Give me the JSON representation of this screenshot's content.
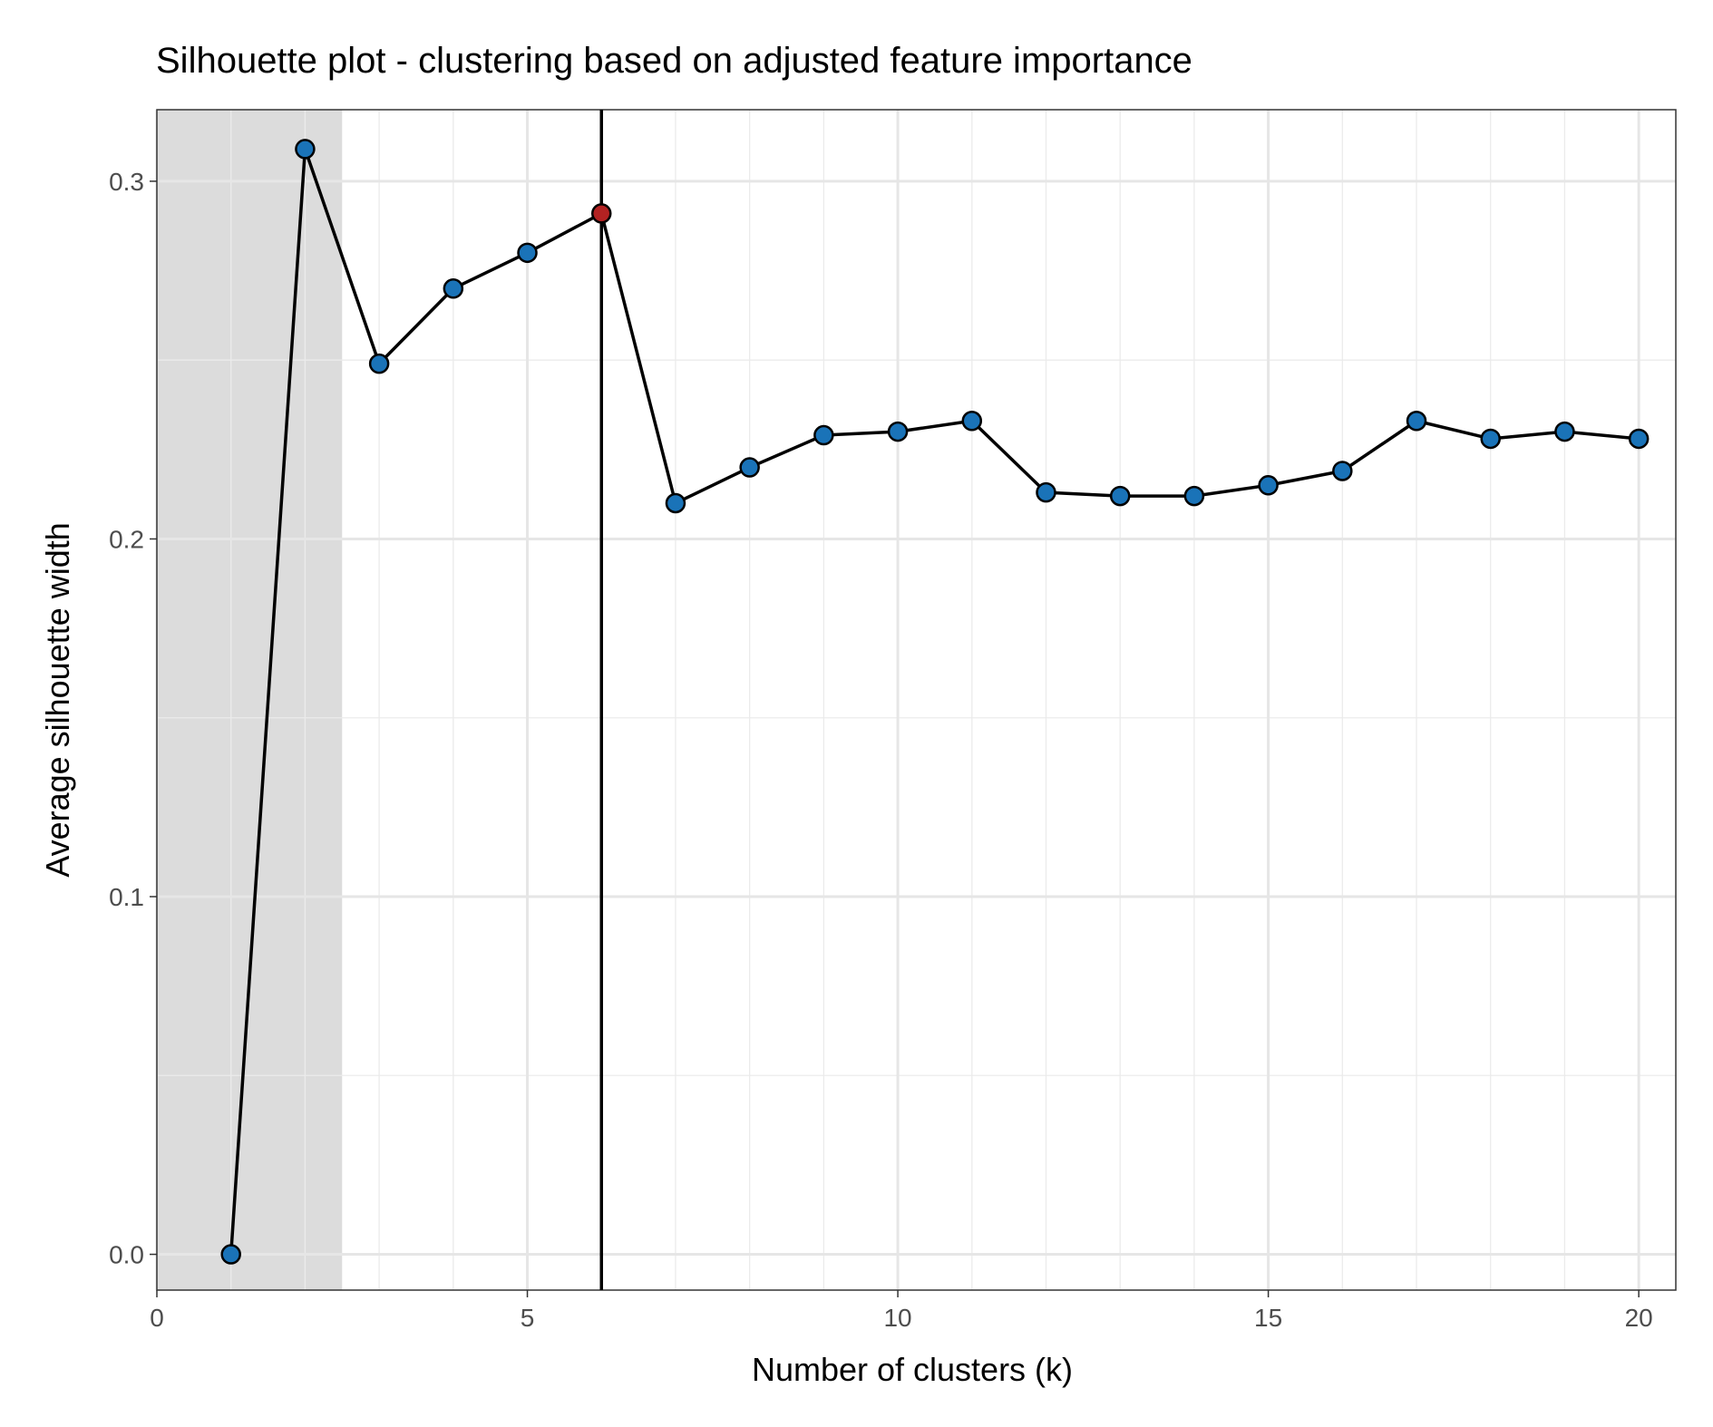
{
  "chart_data": {
    "type": "line",
    "title": "Silhouette plot - clustering based on adjusted feature importance",
    "xlabel": "Number of clusters (k)",
    "ylabel": "Average silhouette width",
    "xlim": [
      0,
      20.5
    ],
    "ylim": [
      -0.01,
      0.32
    ],
    "x_ticks": [
      0,
      5,
      10,
      15,
      20
    ],
    "x_tick_labels": [
      "0",
      "5",
      "10",
      "15",
      "20"
    ],
    "y_ticks": [
      0.0,
      0.1,
      0.2,
      0.3
    ],
    "y_tick_labels": [
      "0.0",
      "0.1",
      "0.2",
      "0.3"
    ],
    "grid": true,
    "shaded_region": {
      "x_start": 0,
      "x_end": 2.5,
      "color": "#dcdcdc"
    },
    "vertical_line": {
      "x": 6,
      "color": "#000000"
    },
    "highlight_point": {
      "x": 6,
      "color": "#b22222"
    },
    "point_color": "#1a73b8",
    "line_color": "#000000",
    "series": [
      {
        "x": [
          1,
          2,
          3,
          4,
          5,
          6,
          7,
          8,
          9,
          10,
          11,
          12,
          13,
          14,
          15,
          16,
          17,
          18,
          19,
          20
        ],
        "values": [
          0.0,
          0.309,
          0.249,
          0.27,
          0.28,
          0.291,
          0.21,
          0.22,
          0.229,
          0.23,
          0.233,
          0.213,
          0.212,
          0.212,
          0.215,
          0.219,
          0.233,
          0.228,
          0.23,
          0.228
        ]
      }
    ]
  }
}
